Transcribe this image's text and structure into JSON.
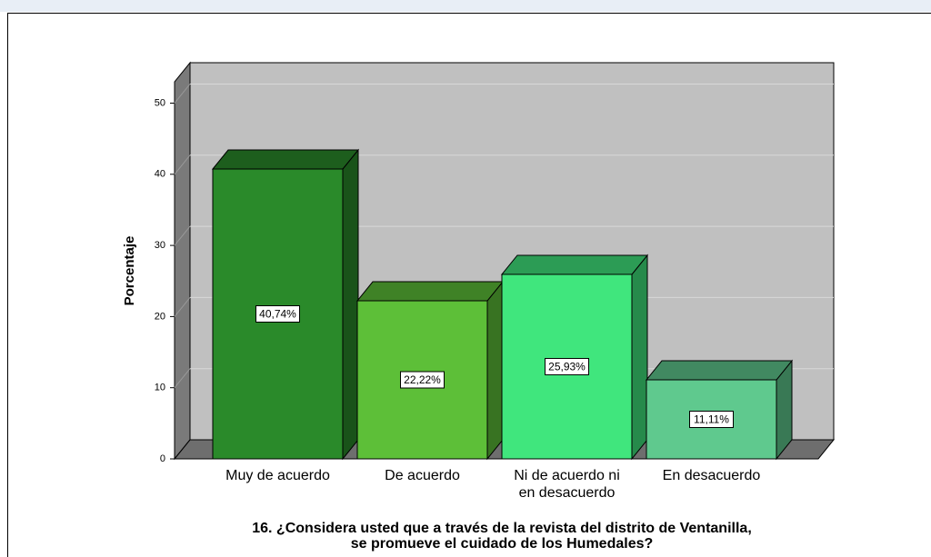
{
  "chart_data": {
    "type": "bar3d",
    "title": "16. ¿Considera usted que a través de la revista del distrito de Ventanilla, se promueve el cuidado de los Humedales?",
    "y_label": "Porcentaje",
    "categories": [
      "Muy de acuerdo",
      "De acuerdo",
      "Ni de acuerdo ni en desacuerdo",
      "En desacuerdo"
    ],
    "values": [
      40.74,
      22.22,
      25.93,
      11.11
    ],
    "value_labels": [
      "40,74%",
      "22,22%",
      "25,93%",
      "11,11%"
    ],
    "colors": [
      "#2a8a2a",
      "#5dbf38",
      "#40e67d",
      "#5fc98e"
    ],
    "ylim": [
      0,
      53
    ],
    "yticks": [
      0,
      10,
      20,
      30,
      40,
      50
    ],
    "grid": true
  }
}
